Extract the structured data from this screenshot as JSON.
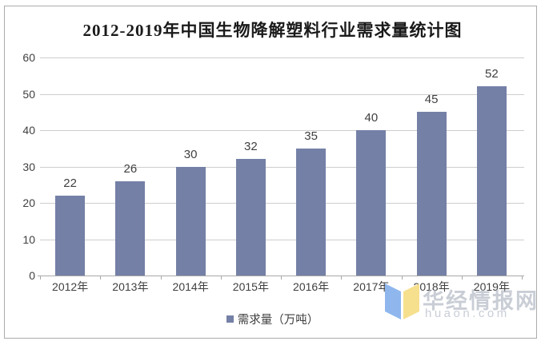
{
  "title": "2012-2019年中国生物降解塑料行业需求量统计图",
  "chart_data": {
    "type": "bar",
    "title": "2012-2019年中国生物降解塑料行业需求量统计图",
    "categories": [
      "2012年",
      "2013年",
      "2014年",
      "2015年",
      "2016年",
      "2017年",
      "2018年",
      "2019年"
    ],
    "values": [
      22,
      26,
      30,
      32,
      35,
      40,
      45,
      52
    ],
    "series_name": "需求量（万吨）",
    "xlabel": "",
    "ylabel": "",
    "ylim": [
      0,
      60
    ],
    "ytick_step": 10,
    "grid": true,
    "legend_position": "bottom",
    "data_labels": true
  },
  "legend": {
    "label": "需求量（万吨）"
  },
  "watermark": {
    "site_name": "华经情报网",
    "site_url": "huaon.com"
  },
  "colors": {
    "bar": "#7480A6",
    "gridline": "#CDCDCD",
    "axis": "#A8A8A8",
    "text": "#3F3F3F",
    "title": "#1A1A1A",
    "logo_blue": "#8FB7EE",
    "logo_yellow": "#F6E08E"
  }
}
